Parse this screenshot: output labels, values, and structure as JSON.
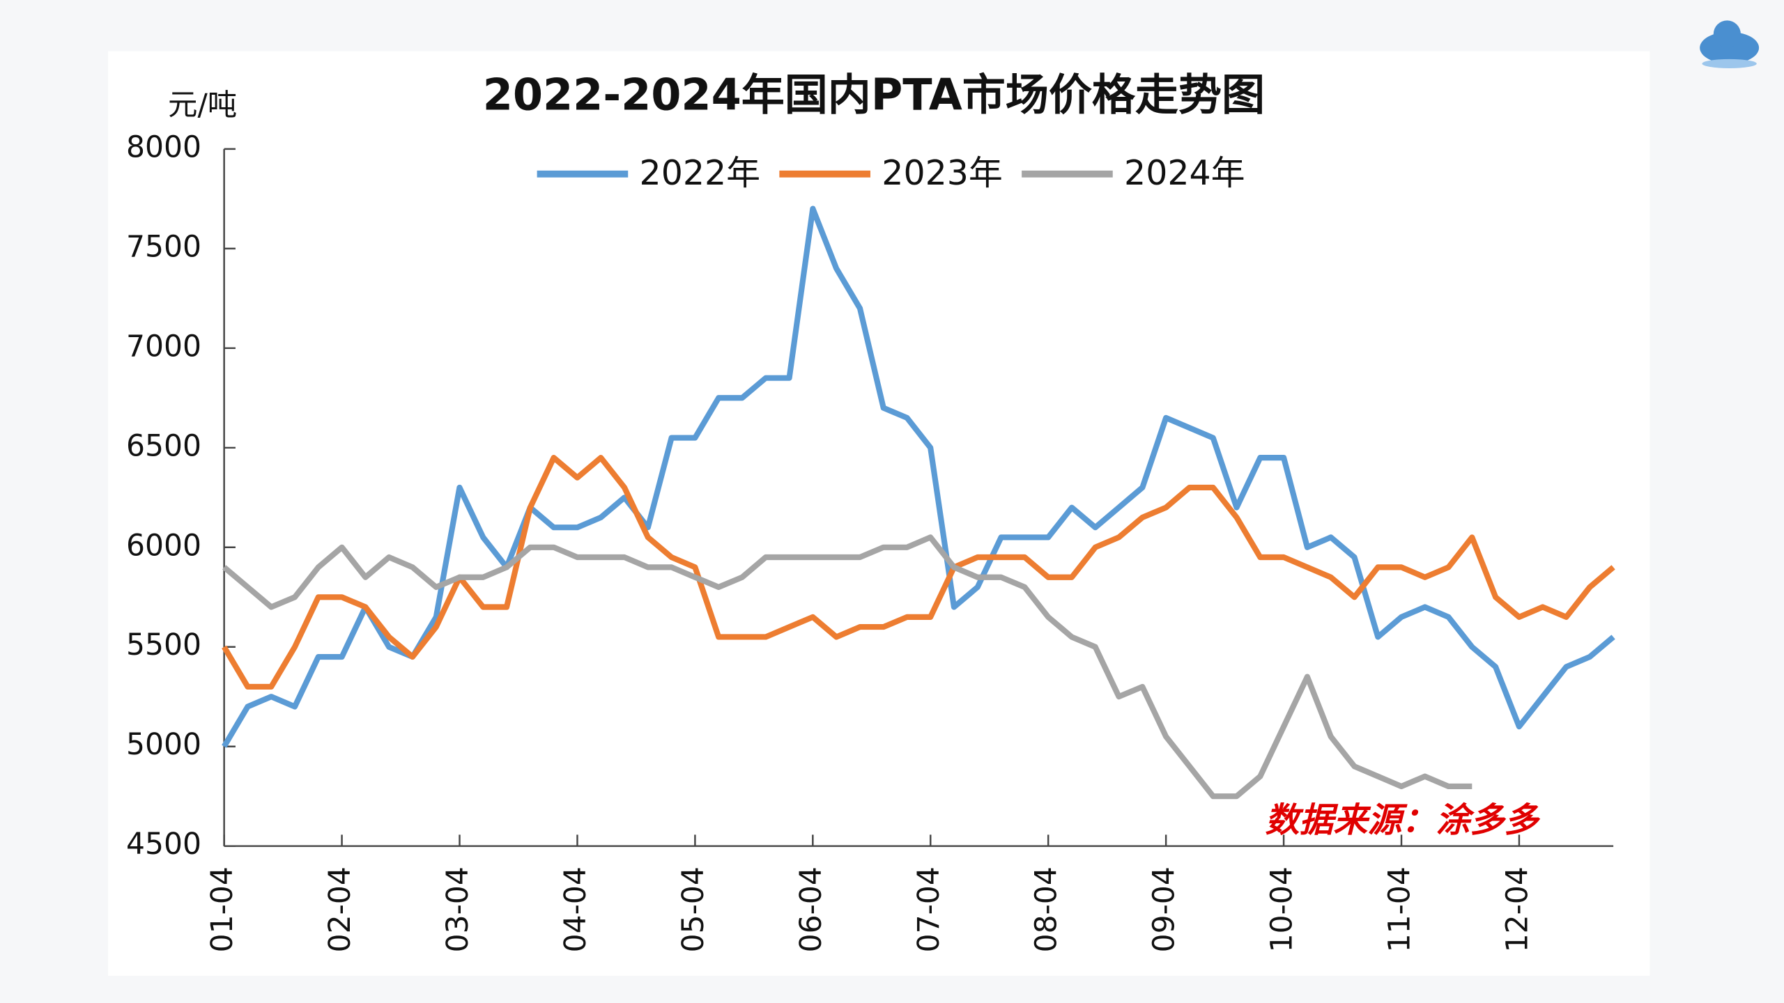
{
  "chart_data": {
    "type": "line",
    "title": "2022-2024年国内PTA市场价格走势图",
    "y_unit": "元/吨",
    "source": "数据来源：涂多多",
    "categories": [
      "01-04",
      null,
      null,
      null,
      null,
      "02-04",
      null,
      null,
      null,
      null,
      "03-04",
      null,
      null,
      null,
      null,
      "04-04",
      null,
      null,
      null,
      null,
      "05-04",
      null,
      null,
      null,
      null,
      "06-04",
      null,
      null,
      null,
      null,
      "07-04",
      null,
      null,
      null,
      null,
      "08-04",
      null,
      null,
      null,
      null,
      "09-04",
      null,
      null,
      null,
      null,
      "10-04",
      null,
      null,
      null,
      null,
      "11-04",
      null,
      null,
      null,
      null,
      "12-04",
      null,
      null,
      null,
      null
    ],
    "series": [
      {
        "name": "2022年",
        "color": "#5b9bd5",
        "values": [
          5000,
          5200,
          5250,
          5200,
          5450,
          5450,
          5700,
          5500,
          5450,
          5650,
          6300,
          6050,
          5900,
          6200,
          6100,
          6100,
          6150,
          6250,
          6100,
          6550,
          6550,
          6750,
          6750,
          6850,
          6850,
          7700,
          7400,
          7200,
          6700,
          6650,
          6500,
          5700,
          5800,
          6050,
          6050,
          6050,
          6200,
          6100,
          6200,
          6300,
          6650,
          6600,
          6550,
          6200,
          6450,
          6450,
          6000,
          6050,
          5950,
          5550,
          5650,
          5700,
          5650,
          5500,
          5400,
          5100,
          5250,
          5400,
          5450,
          5550
        ]
      },
      {
        "name": "2023年",
        "color": "#ed7d31",
        "values": [
          5500,
          5300,
          5300,
          5500,
          5750,
          5750,
          5700,
          5550,
          5450,
          5600,
          5850,
          5700,
          5700,
          6200,
          6450,
          6350,
          6450,
          6300,
          6050,
          5950,
          5900,
          5550,
          5550,
          5550,
          5600,
          5650,
          5550,
          5600,
          5600,
          5650,
          5650,
          5900,
          5950,
          5950,
          5950,
          5850,
          5850,
          6000,
          6050,
          6150,
          6200,
          6300,
          6300,
          6150,
          5950,
          5950,
          5900,
          5850,
          5750,
          5900,
          5900,
          5850,
          5900,
          6050,
          5750,
          5650,
          5700,
          5650,
          5800,
          5900
        ]
      },
      {
        "name": "2024年",
        "color": "#a5a5a5",
        "values": [
          5900,
          5800,
          5700,
          5750,
          5900,
          6000,
          5850,
          5950,
          5900,
          5800,
          5850,
          5850,
          5900,
          6000,
          6000,
          5950,
          5950,
          5950,
          5900,
          5900,
          5850,
          5800,
          5850,
          5950,
          5950,
          5950,
          5950,
          5950,
          6000,
          6000,
          6050,
          5900,
          5850,
          5850,
          5800,
          5650,
          5550,
          5500,
          5250,
          5300,
          5050,
          4900,
          4750,
          4750,
          4850,
          5100,
          5350,
          5050,
          4900,
          4850,
          4800,
          4850,
          4800,
          4800,
          null,
          null,
          null,
          null,
          null,
          null
        ]
      }
    ],
    "ylim": [
      4500,
      8000
    ],
    "yticks": [
      4500,
      5000,
      5500,
      6000,
      6500,
      7000,
      7500,
      8000
    ]
  }
}
